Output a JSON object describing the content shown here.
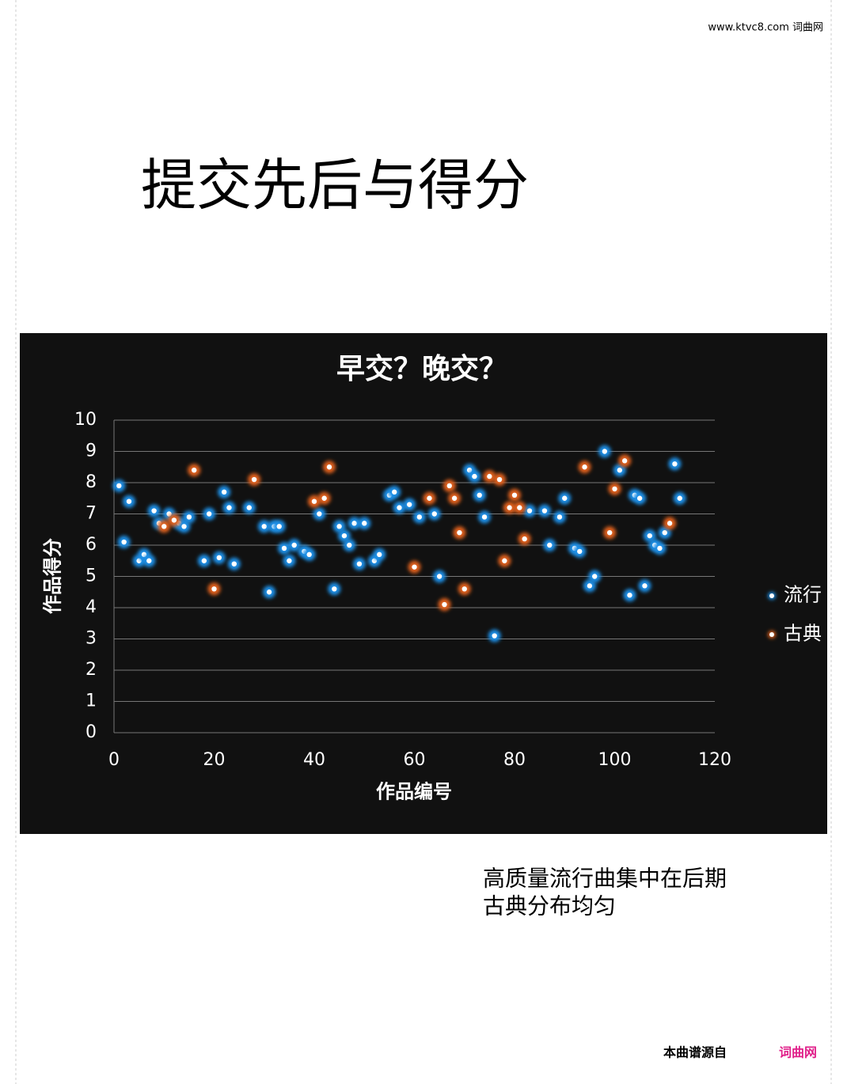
{
  "header": {
    "site": "www.ktvc8.com 词曲网"
  },
  "title": "提交先后与得分",
  "chart_data": {
    "type": "scatter",
    "title": "早交？晚交？",
    "x_label": "作品编号",
    "y_label": "作品得分",
    "xlim": [
      0,
      120
    ],
    "xticks": [
      0,
      20,
      40,
      60,
      80,
      100,
      120
    ],
    "ylim": [
      0,
      10
    ],
    "yticks": [
      0,
      1,
      2,
      3,
      4,
      5,
      6,
      7,
      8,
      9,
      10
    ],
    "grid": true,
    "legend": "right",
    "series": [
      {
        "name": "流行",
        "color": "#1e8fe6",
        "x": [
          1,
          2,
          3,
          5,
          6,
          7,
          8,
          9,
          11,
          13,
          14,
          15,
          18,
          19,
          21,
          22,
          23,
          24,
          27,
          30,
          31,
          32,
          33,
          34,
          35,
          36,
          38,
          39,
          41,
          44,
          45,
          46,
          47,
          48,
          49,
          50,
          52,
          53,
          55,
          56,
          57,
          59,
          61,
          64,
          65,
          71,
          72,
          73,
          74,
          76,
          83,
          86,
          87,
          89,
          90,
          92,
          93,
          95,
          96,
          98,
          101,
          103,
          104,
          105,
          106,
          107,
          108,
          109,
          110,
          112,
          113
        ],
        "values": [
          7.9,
          6.1,
          7.4,
          5.5,
          5.7,
          5.5,
          7.1,
          6.7,
          7.0,
          6.7,
          6.6,
          6.9,
          5.5,
          7.0,
          5.6,
          7.7,
          7.2,
          5.4,
          7.2,
          6.6,
          4.5,
          6.6,
          6.6,
          5.9,
          5.5,
          6.0,
          5.8,
          5.7,
          7.0,
          4.6,
          6.6,
          6.3,
          6.0,
          6.7,
          5.4,
          6.7,
          5.5,
          5.7,
          7.6,
          7.7,
          7.2,
          7.3,
          6.9,
          7.0,
          5.0,
          8.4,
          8.2,
          7.6,
          6.9,
          3.1,
          7.1,
          7.1,
          6.0,
          6.9,
          7.5,
          5.9,
          5.8,
          4.7,
          5.0,
          9.0,
          8.4,
          4.4,
          7.6,
          7.5,
          4.7,
          6.3,
          6.0,
          5.9,
          6.4,
          8.6,
          7.5
        ]
      },
      {
        "name": "古典",
        "color": "#e0601a",
        "x": [
          10,
          12,
          16,
          20,
          28,
          40,
          42,
          43,
          60,
          63,
          66,
          67,
          68,
          69,
          70,
          75,
          77,
          78,
          79,
          80,
          81,
          82,
          94,
          99,
          100,
          102,
          111
        ],
        "values": [
          6.6,
          6.8,
          8.4,
          4.6,
          8.1,
          7.4,
          7.5,
          8.5,
          5.3,
          7.5,
          4.1,
          7.9,
          7.5,
          6.4,
          4.6,
          8.2,
          8.1,
          5.5,
          7.2,
          7.6,
          7.2,
          6.2,
          8.5,
          6.4,
          7.8,
          8.7,
          6.7
        ]
      }
    ]
  },
  "notes": [
    "高质量流行曲集中在后期",
    "古典分布均匀"
  ],
  "footer": {
    "source": "本曲谱源自",
    "site": "词曲网"
  }
}
